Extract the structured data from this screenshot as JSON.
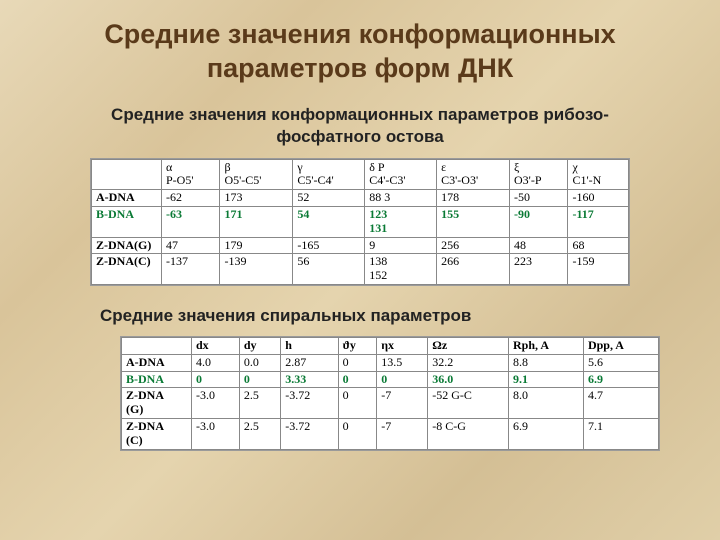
{
  "colors": {
    "title": "#5a3a1a",
    "text": "#222222",
    "highlight_row": "#0a7a35",
    "table_bg": "#ffffff",
    "table_border": "#888888"
  },
  "fonts": {
    "title_size_pt": 27,
    "subtitle_size_pt": 17,
    "table_size_pt": 12,
    "title_family": "Arial",
    "table_family": "Times New Roman"
  },
  "title_line1": "Средние значения конформационных",
  "title_line2": "параметров форм ДНК",
  "subtitle1_line1": "Средние значения конформационных параметров рибозо-",
  "subtitle1_line2": "фосфатного остова",
  "subtitle2": "Средние значения спиральных параметров",
  "table1": {
    "headers": [
      {
        "top": "α",
        "bot": "P-O5'"
      },
      {
        "top": "β",
        "bot": "O5'-C5'"
      },
      {
        "top": "γ",
        "bot": "C5'-C4'"
      },
      {
        "top": "δ    P",
        "bot": "C4'-C3'"
      },
      {
        "top": "ε",
        "bot": "C3'-O3'"
      },
      {
        "top": "ξ",
        "bot": "O3'-P"
      },
      {
        "top": "χ",
        "bot": "C1'-N"
      }
    ],
    "rows": [
      {
        "label": "A-DNA",
        "cells": [
          "-62",
          "173",
          "52",
          "88    3",
          "178",
          "-50",
          "-160"
        ],
        "highlight": false
      },
      {
        "label": "B-DNA",
        "cells": [
          "-63",
          "171",
          "54",
          "123\n131",
          "155",
          "-90",
          "-117"
        ],
        "highlight": true
      },
      {
        "label": "Z-DNA(G)",
        "cells": [
          "47",
          "179",
          "-165",
          "9",
          "256",
          "48",
          "68"
        ],
        "highlight": false
      },
      {
        "label": "Z-DNA(C)",
        "cells": [
          "-137",
          "-139",
          "56",
          "138\n152",
          "266",
          "223",
          "-159"
        ],
        "highlight": false
      }
    ]
  },
  "table2": {
    "headers": [
      "dx",
      "dy",
      "h",
      "ϑy",
      "ηx",
      "Ωz",
      "Rph, A",
      "Dpp, A"
    ],
    "rows": [
      {
        "label": "A-DNA",
        "cells": [
          "4.0",
          "0.0",
          "2.87",
          "0",
          "13.5",
          "32.2",
          "8.8",
          "5.6"
        ],
        "highlight": false
      },
      {
        "label": "B-DNA",
        "cells": [
          "0",
          "0",
          "3.33",
          "0",
          "0",
          "36.0",
          "9.1",
          "6.9"
        ],
        "highlight": true
      },
      {
        "label": "Z-DNA\n(G)",
        "cells": [
          "-3.0",
          "2.5",
          "-3.72",
          "0",
          "-7",
          "-52 G-C",
          "8.0",
          "4.7"
        ],
        "highlight": false
      },
      {
        "label": "Z-DNA\n(C)",
        "cells": [
          "-3.0",
          "2.5",
          "-3.72",
          "0",
          "-7",
          "-8 C-G",
          "6.9",
          "7.1"
        ],
        "highlight": false
      }
    ]
  }
}
